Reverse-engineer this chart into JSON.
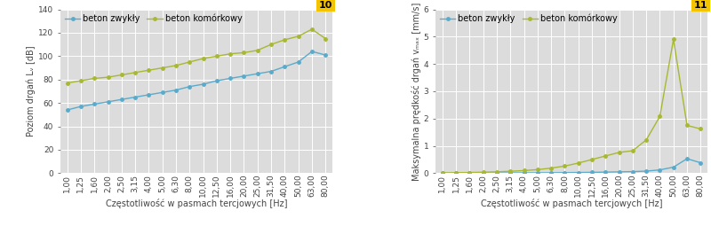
{
  "x_labels": [
    "1,00",
    "1,25",
    "1,60",
    "2,00",
    "2,50",
    "3,15",
    "4,00",
    "5,00",
    "6,30",
    "8,00",
    "10,00",
    "12,50",
    "16,00",
    "20,00",
    "25,00",
    "31,50",
    "40,00",
    "50,00",
    "63,00",
    "80,00"
  ],
  "x_indices": [
    0,
    1,
    2,
    3,
    4,
    5,
    6,
    7,
    8,
    9,
    10,
    11,
    12,
    13,
    14,
    15,
    16,
    17,
    18,
    19
  ],
  "chart1": {
    "title_num": "10",
    "ylabel": "Poziom drgań Lᵥ [dB]",
    "xlabel": "Częstotliwość w pasmach tercjowych [Hz]",
    "ylim": [
      0,
      140
    ],
    "yticks": [
      0,
      20,
      40,
      60,
      80,
      100,
      120,
      140
    ],
    "beton_zwykly": [
      54,
      57,
      59,
      61,
      63,
      65,
      67,
      69,
      71,
      74,
      76,
      79,
      81,
      83,
      85,
      87,
      91,
      95,
      104,
      101
    ],
    "beton_komorkowy": [
      77,
      79,
      81,
      82,
      84,
      86,
      88,
      90,
      92,
      95,
      98,
      100,
      102,
      103,
      105,
      110,
      114,
      117,
      123,
      115
    ]
  },
  "chart2": {
    "title_num": "11",
    "ylabel": "Maksymalna prędkość drgań vₘₐₓ [mm/s]",
    "xlabel": "Częstotliwość w pasmach tercjowych [Hz]",
    "ylim": [
      0,
      6.0
    ],
    "yticks": [
      0.0,
      1.0,
      2.0,
      3.0,
      4.0,
      5.0,
      6.0
    ],
    "beton_zwykly": [
      0.005,
      0.006,
      0.007,
      0.008,
      0.009,
      0.01,
      0.012,
      0.014,
      0.016,
      0.02,
      0.025,
      0.03,
      0.038,
      0.047,
      0.057,
      0.075,
      0.12,
      0.22,
      0.53,
      0.38
    ],
    "beton_komorkowy": [
      0.012,
      0.018,
      0.025,
      0.035,
      0.05,
      0.07,
      0.095,
      0.13,
      0.185,
      0.26,
      0.37,
      0.5,
      0.63,
      0.76,
      0.82,
      1.22,
      2.08,
      4.9,
      1.75,
      1.62
    ]
  },
  "color_zwykly": "#5aabcb",
  "color_komorkowy": "#a8b832",
  "bg_color": "#dcdcdc",
  "legend_zwykly": "beton zwykły",
  "legend_komorkowy": "beton komórkowy",
  "title_bg": "#f5c400",
  "title_color": "#000000",
  "title_fontsize": 8,
  "label_fontsize": 7,
  "tick_fontsize": 6.5,
  "legend_fontsize": 7
}
